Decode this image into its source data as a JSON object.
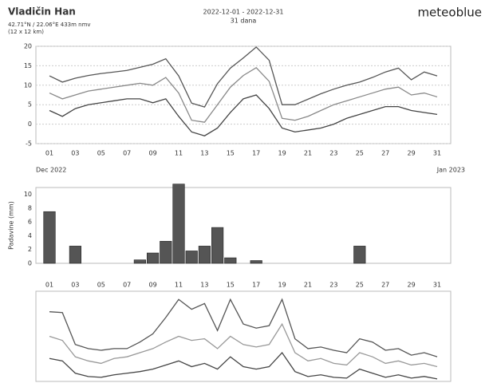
{
  "header": {
    "title": "Vladičin Han",
    "coords": "42.71°N / 22.06°E  433m nmv",
    "resolution": "(12 x 12 km)",
    "period": "2022-12-01 - 2022-12-31",
    "days": "31 dana",
    "brand": "meteoblue"
  },
  "chart_data": [
    {
      "type": "line",
      "categories": [
        "01",
        null,
        "03",
        null,
        "05",
        null,
        "07",
        null,
        "09",
        null,
        "11",
        null,
        "13",
        null,
        "15",
        null,
        "17",
        null,
        "19",
        null,
        "21",
        null,
        "23",
        null,
        "25",
        null,
        "27",
        null,
        "29",
        null,
        "31"
      ],
      "x_start_label": "Dec 2022",
      "x_end_label": "Jan 2023",
      "ylim": [
        -5,
        20
      ],
      "yticks": [
        -5,
        0,
        5,
        10,
        15,
        20
      ],
      "grid": true,
      "series": [
        {
          "color": "#555555",
          "values": [
            12.4,
            10.8,
            11.8,
            12.5,
            13,
            13.4,
            13.8,
            14.6,
            15.4,
            16.8,
            12.4,
            5.4,
            4.4,
            10.4,
            14.4,
            17,
            19.8,
            16.4,
            5,
            5,
            6.4,
            7.8,
            9,
            10,
            10.8,
            12,
            13.4,
            14.4,
            11.4,
            13.4,
            12.4
          ]
        },
        {
          "color": "#888888",
          "values": [
            8,
            6.5,
            7.5,
            8.5,
            9,
            9.5,
            10,
            10.5,
            10,
            12,
            8,
            1,
            0.5,
            5,
            9.5,
            12.5,
            14.5,
            11,
            1.5,
            1,
            2,
            3.5,
            5,
            6,
            7,
            8,
            9,
            9.5,
            7.5,
            8,
            7
          ]
        },
        {
          "color": "#444444",
          "values": [
            3.5,
            2,
            4,
            5,
            5.5,
            6,
            6.5,
            6.5,
            5.5,
            6.5,
            2,
            -2,
            -3,
            -1,
            3,
            6.5,
            7.5,
            4,
            -1,
            -2,
            -1.5,
            -1,
            0,
            1.5,
            2.5,
            3.5,
            4.5,
            4.5,
            3.5,
            3,
            2.5
          ]
        }
      ]
    },
    {
      "type": "bar",
      "y_label": "Padavine (mm)",
      "ylim": [
        0,
        11
      ],
      "yticks": [
        0,
        2,
        4,
        6,
        8,
        10
      ],
      "color": "#555555",
      "values": [
        7.5,
        0,
        2.5,
        0,
        0,
        0,
        0,
        0.5,
        1.5,
        3.2,
        11.5,
        1.8,
        2.5,
        5.2,
        0.8,
        0,
        0.4,
        0,
        0,
        0,
        0,
        0,
        0,
        0,
        2.5,
        0,
        0,
        0,
        0,
        0,
        0
      ]
    },
    {
      "type": "line",
      "categories": [
        "01",
        null,
        "03",
        null,
        "05",
        null,
        "07",
        null,
        "09",
        null,
        "11",
        null,
        "13",
        null,
        "15",
        null,
        "17",
        null,
        "19",
        null,
        "21",
        null,
        "23",
        null,
        "25",
        null,
        "27",
        null,
        "29",
        null,
        "31"
      ],
      "ylim": [
        0,
        110
      ],
      "grid": true,
      "series": [
        {
          "color": "#555555",
          "values": [
            85,
            84,
            45,
            40,
            38,
            40,
            40,
            48,
            58,
            78,
            100,
            88,
            95,
            62,
            100,
            70,
            65,
            68,
            100,
            52,
            40,
            42,
            38,
            35,
            52,
            48,
            38,
            40,
            32,
            35,
            30
          ]
        },
        {
          "color": "#999999",
          "values": [
            55,
            50,
            30,
            25,
            22,
            28,
            30,
            35,
            40,
            48,
            55,
            50,
            52,
            40,
            55,
            45,
            42,
            45,
            70,
            35,
            25,
            28,
            22,
            20,
            35,
            30,
            22,
            25,
            20,
            22,
            18
          ]
        },
        {
          "color": "#444444",
          "values": [
            28,
            25,
            10,
            6,
            5,
            8,
            10,
            12,
            15,
            20,
            25,
            18,
            22,
            15,
            30,
            18,
            15,
            18,
            35,
            12,
            6,
            8,
            5,
            4,
            15,
            10,
            5,
            8,
            4,
            6,
            3
          ]
        }
      ]
    }
  ]
}
